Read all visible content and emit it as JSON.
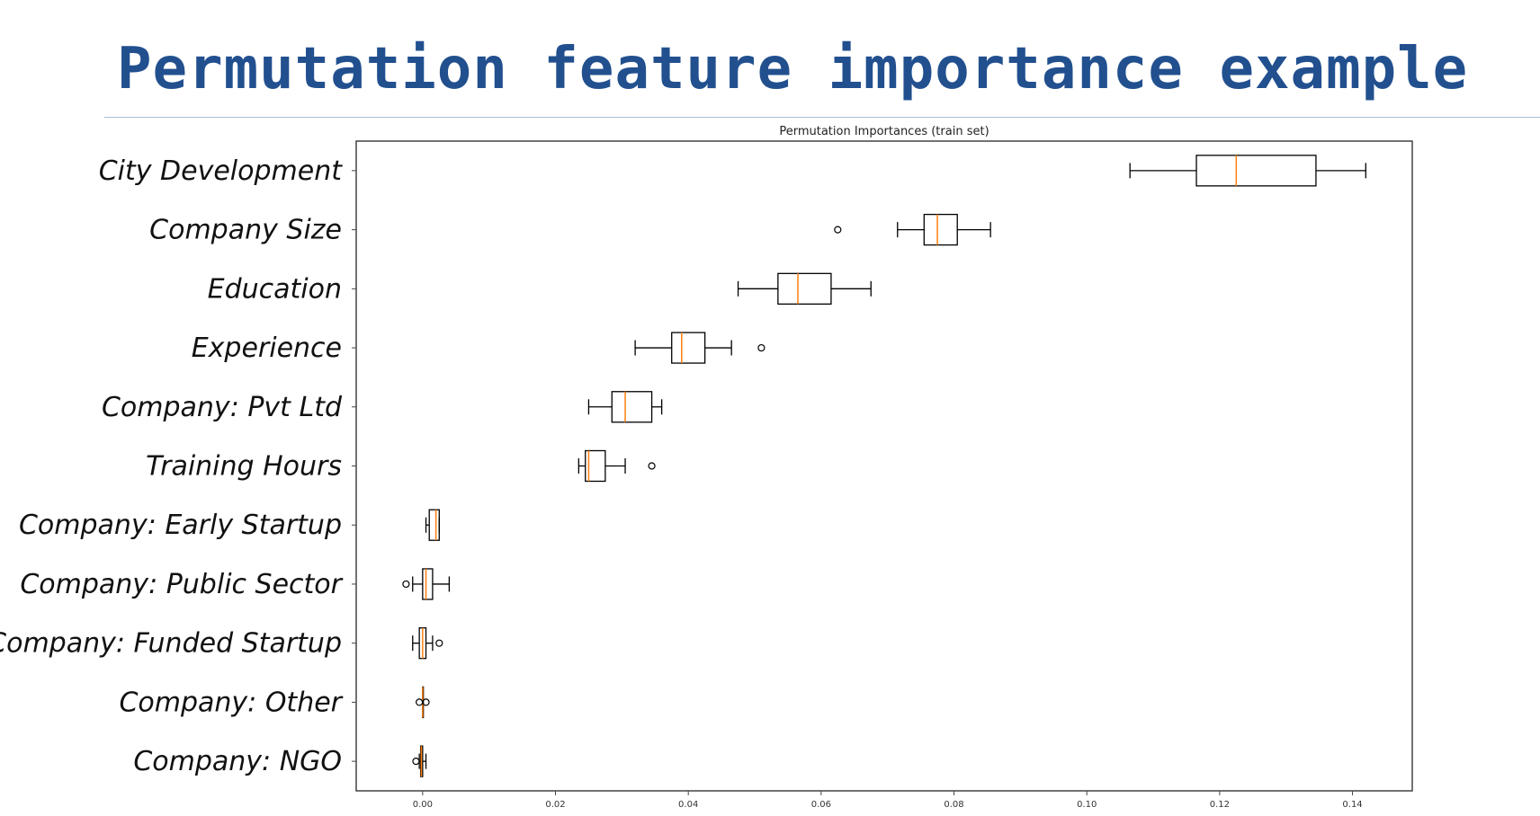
{
  "slide": {
    "title": "Permutation feature importance example"
  },
  "chart_data": {
    "type": "box",
    "title": "Permutation Importances (train set)",
    "xlabel": "",
    "ylabel": "",
    "xlim": [
      -0.01,
      0.149
    ],
    "xticks": [
      "0.00",
      "0.02",
      "0.04",
      "0.06",
      "0.08",
      "0.10",
      "0.12",
      "0.14"
    ],
    "grid": false,
    "orientation": "horizontal",
    "colors": {
      "box": "#000000",
      "median": "#ff7f0e",
      "outlier": "#000000"
    },
    "categories": [
      "City Development",
      "Company Size",
      "Education",
      "Experience",
      "Company: Pvt Ltd",
      "Training Hours",
      "Company: Early Startup",
      "Company: Public Sector",
      "Company: Funded Startup",
      "Company: Other",
      "Company: NGO"
    ],
    "boxes": [
      {
        "whisker_low": 0.1065,
        "q1": 0.1165,
        "median": 0.1225,
        "q3": 0.1345,
        "whisker_high": 0.142,
        "outliers": []
      },
      {
        "whisker_low": 0.0715,
        "q1": 0.0755,
        "median": 0.0775,
        "q3": 0.0805,
        "whisker_high": 0.0855,
        "outliers": [
          0.0625
        ]
      },
      {
        "whisker_low": 0.0475,
        "q1": 0.0535,
        "median": 0.0565,
        "q3": 0.0615,
        "whisker_high": 0.0675,
        "outliers": []
      },
      {
        "whisker_low": 0.032,
        "q1": 0.0375,
        "median": 0.039,
        "q3": 0.0425,
        "whisker_high": 0.0465,
        "outliers": [
          0.051
        ]
      },
      {
        "whisker_low": 0.025,
        "q1": 0.0285,
        "median": 0.0305,
        "q3": 0.0345,
        "whisker_high": 0.036,
        "outliers": []
      },
      {
        "whisker_low": 0.0235,
        "q1": 0.0245,
        "median": 0.025,
        "q3": 0.0275,
        "whisker_high": 0.0305,
        "outliers": [
          0.0345
        ]
      },
      {
        "whisker_low": 0.0005,
        "q1": 0.001,
        "median": 0.002,
        "q3": 0.0025,
        "whisker_high": 0.0025,
        "outliers": []
      },
      {
        "whisker_low": -0.0015,
        "q1": 0.0,
        "median": 0.0005,
        "q3": 0.0015,
        "whisker_high": 0.004,
        "outliers": [
          -0.0025
        ]
      },
      {
        "whisker_low": -0.0015,
        "q1": -0.0005,
        "median": 0.0,
        "q3": 0.0005,
        "whisker_high": 0.0015,
        "outliers": [
          0.0025
        ]
      },
      {
        "whisker_low": 0.0,
        "q1": 0.0,
        "median": 0.0,
        "q3": 0.0,
        "whisker_high": 0.0,
        "outliers": [
          -0.0005,
          0.0005
        ]
      },
      {
        "whisker_low": -0.0005,
        "q1": -0.0003,
        "median": -0.0002,
        "q3": 0.0,
        "whisker_high": 0.0005,
        "outliers": [
          -0.001
        ]
      }
    ]
  }
}
